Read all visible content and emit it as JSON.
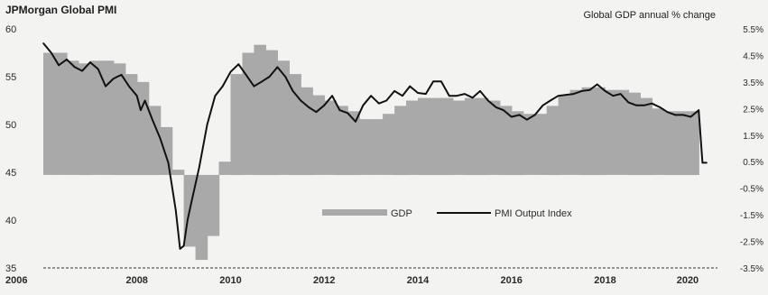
{
  "chart_data": {
    "type": "bar+line",
    "title_left": "JPMorgan Global PMI",
    "title_right": "Global GDP annual % change",
    "x_ticks": [
      "2006",
      "2008",
      "2010",
      "2012",
      "2014",
      "2016",
      "2018",
      "2020"
    ],
    "y_left_ticks": [
      "60",
      "55",
      "50",
      "45",
      "40",
      "35"
    ],
    "y_left_lim": [
      35,
      60
    ],
    "y_right_ticks": [
      "5.5%",
      "4.5%",
      "3.5%",
      "2.5%",
      "1.5%",
      "0.5%",
      "-0.5%",
      "-1.5%",
      "-2.5%",
      "-3.5%"
    ],
    "y_right_lim": [
      -3.5,
      5.5
    ],
    "x_lim": [
      2006.0,
      2020.4
    ],
    "legend": {
      "gdp": "GDP",
      "pmi": "PMI Output Index"
    },
    "series": [
      {
        "name": "GDP",
        "kind": "bar",
        "unit": "%",
        "x": [
          2006.0,
          2006.25,
          2006.5,
          2006.75,
          2007.0,
          2007.25,
          2007.5,
          2007.75,
          2008.0,
          2008.25,
          2008.5,
          2008.75,
          2009.0,
          2009.25,
          2009.5,
          2009.75,
          2010.0,
          2010.25,
          2010.5,
          2010.75,
          2011.0,
          2011.25,
          2011.5,
          2011.75,
          2012.0,
          2012.25,
          2012.5,
          2012.75,
          2013.0,
          2013.25,
          2013.5,
          2013.75,
          2014.0,
          2014.25,
          2014.5,
          2014.75,
          2015.0,
          2015.25,
          2015.5,
          2015.75,
          2016.0,
          2016.25,
          2016.5,
          2016.75,
          2017.0,
          2017.25,
          2017.5,
          2017.75,
          2018.0,
          2018.25,
          2018.5,
          2018.75,
          2019.0,
          2019.25,
          2019.5,
          2019.75
        ],
        "values": [
          4.6,
          4.6,
          4.3,
          4.2,
          4.3,
          4.3,
          4.2,
          3.8,
          3.5,
          2.6,
          1.8,
          0.2,
          -2.7,
          -3.2,
          -2.3,
          0.5,
          3.8,
          4.6,
          4.9,
          4.7,
          4.3,
          3.8,
          3.3,
          3.0,
          2.8,
          2.6,
          2.4,
          2.1,
          2.1,
          2.3,
          2.6,
          2.8,
          2.9,
          2.9,
          2.9,
          2.8,
          2.9,
          2.9,
          2.8,
          2.6,
          2.4,
          2.3,
          2.3,
          2.6,
          3.0,
          3.2,
          3.3,
          3.3,
          3.2,
          3.2,
          3.1,
          2.9,
          2.5,
          2.4,
          2.4,
          2.4
        ]
      },
      {
        "name": "PMI Output Index",
        "kind": "line",
        "x": [
          2006.0,
          2006.17,
          2006.33,
          2006.5,
          2006.67,
          2006.83,
          2007.0,
          2007.17,
          2007.33,
          2007.5,
          2007.67,
          2007.83,
          2008.0,
          2008.08,
          2008.17,
          2008.33,
          2008.5,
          2008.67,
          2008.83,
          2008.92,
          2009.0,
          2009.08,
          2009.17,
          2009.33,
          2009.5,
          2009.67,
          2009.83,
          2010.0,
          2010.17,
          2010.33,
          2010.5,
          2010.67,
          2010.83,
          2011.0,
          2011.17,
          2011.33,
          2011.5,
          2011.67,
          2011.83,
          2012.0,
          2012.17,
          2012.33,
          2012.5,
          2012.67,
          2012.83,
          2013.0,
          2013.17,
          2013.33,
          2013.5,
          2013.67,
          2013.83,
          2014.0,
          2014.17,
          2014.33,
          2014.5,
          2014.67,
          2014.83,
          2015.0,
          2015.17,
          2015.33,
          2015.5,
          2015.67,
          2015.83,
          2016.0,
          2016.17,
          2016.33,
          2016.5,
          2016.67,
          2016.83,
          2017.0,
          2017.17,
          2017.33,
          2017.5,
          2017.67,
          2017.83,
          2018.0,
          2018.17,
          2018.33,
          2018.5,
          2018.67,
          2018.83,
          2019.0,
          2019.17,
          2019.33,
          2019.5,
          2019.67,
          2019.83,
          2020.0,
          2020.08,
          2020.17
        ],
        "values": [
          58.5,
          57.5,
          56.2,
          56.8,
          56.0,
          55.6,
          56.5,
          55.8,
          54.0,
          54.8,
          55.2,
          54.0,
          53.0,
          51.5,
          52.5,
          50.5,
          48.5,
          46.0,
          41.0,
          37.0,
          37.3,
          40.0,
          42.0,
          45.5,
          50.0,
          53.0,
          54.0,
          55.5,
          56.3,
          55.2,
          54.0,
          54.5,
          55.0,
          56.0,
          55.0,
          53.5,
          52.5,
          51.8,
          51.3,
          52.0,
          53.0,
          51.5,
          51.2,
          50.3,
          52.0,
          53.0,
          52.2,
          52.5,
          53.5,
          53.0,
          54.0,
          53.3,
          53.2,
          54.5,
          54.5,
          53.0,
          53.0,
          53.2,
          52.8,
          53.5,
          52.5,
          51.8,
          51.5,
          50.8,
          51.0,
          50.5,
          51.0,
          52.0,
          52.5,
          53.0,
          53.1,
          53.2,
          53.5,
          53.6,
          54.2,
          53.5,
          53.0,
          53.2,
          52.3,
          52.0,
          52.0,
          52.2,
          51.8,
          51.3,
          51.0,
          51.0,
          50.8,
          51.5,
          46.0,
          46.0
        ]
      }
    ],
    "grid": false,
    "legend_position": "bottom-center"
  }
}
